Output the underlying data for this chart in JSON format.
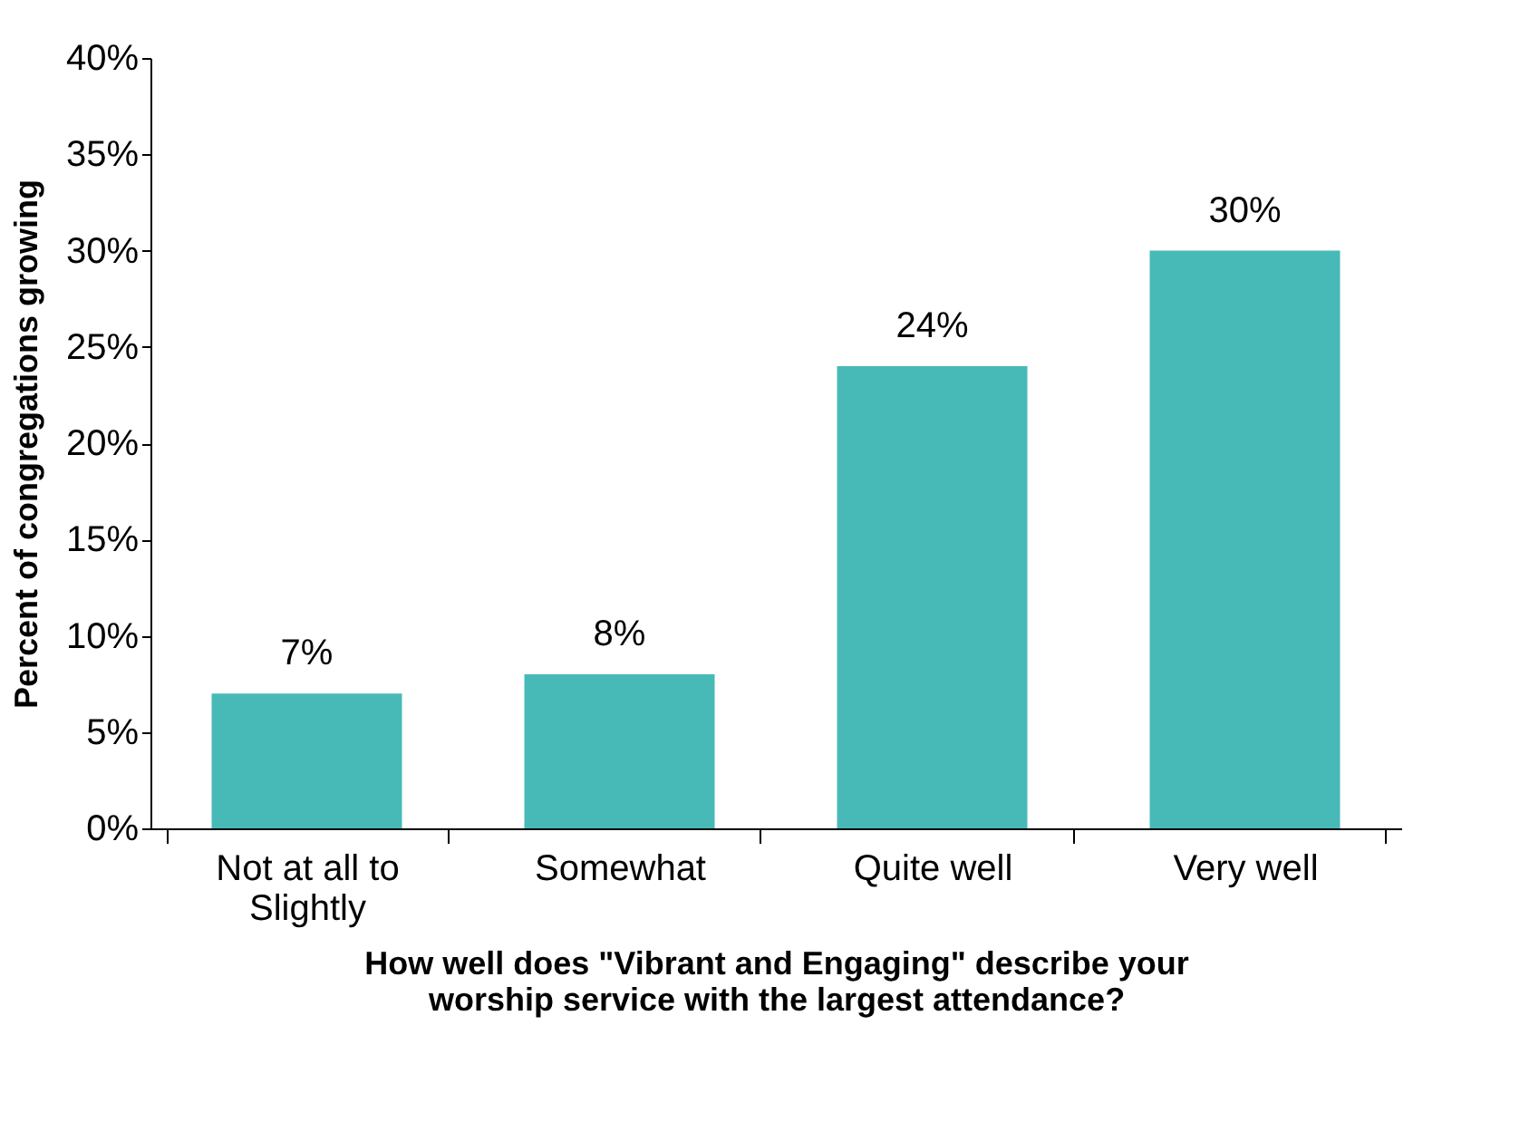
{
  "chart_data": {
    "type": "bar",
    "xlabel": "How well does \"Vibrant and Engaging\" describe your worship service with the largest attendance?",
    "ylabel": "Percent of congregations growing",
    "categories": [
      "Not at all to Slightly",
      "Somewhat",
      "Quite well",
      "Very well"
    ],
    "values": [
      7,
      8,
      24,
      30
    ],
    "value_labels": [
      "7%",
      "8%",
      "24%",
      "30%"
    ],
    "color": "#47bab7",
    "ylim": [
      0,
      40
    ],
    "yticks": [
      {
        "value": 0,
        "label": "0%"
      },
      {
        "value": 5,
        "label": "5%"
      },
      {
        "value": 10,
        "label": "10%"
      },
      {
        "value": 15,
        "label": "15%"
      },
      {
        "value": 20,
        "label": "20%"
      },
      {
        "value": 25,
        "label": "25%"
      },
      {
        "value": 30,
        "label": "30%"
      },
      {
        "value": 35,
        "label": "35%"
      },
      {
        "value": 40,
        "label": "40%"
      }
    ],
    "grid": false
  }
}
